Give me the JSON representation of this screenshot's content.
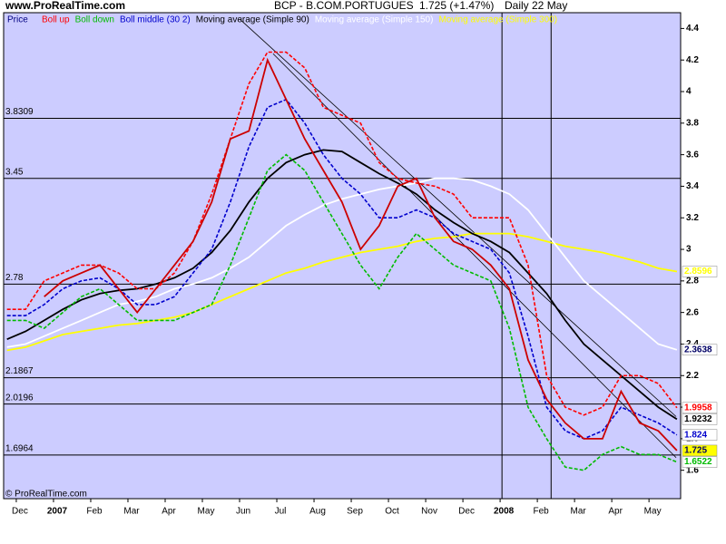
{
  "chart_data": {
    "type": "line",
    "site": "www.ProRealTime.com",
    "title": "BCP - B.COM.PORTUGUES",
    "quote": "1.725 (+1.47%)",
    "period": "Daily  22 May",
    "footer": "© ProRealTime.com",
    "background": "#ccccff",
    "x": [
      -0.25,
      0.25,
      0.75,
      1.25,
      1.75,
      2.25,
      2.75,
      3.25,
      3.75,
      4.25,
      4.75,
      5.25,
      5.75,
      6.25,
      6.75,
      7.25,
      7.75,
      8.25,
      8.75,
      9.25,
      9.75,
      10.25,
      10.75,
      11.25,
      11.75,
      12.25,
      12.75,
      13.25,
      13.75,
      14.25,
      14.75,
      15.25,
      15.75,
      16.25,
      16.75,
      17.25,
      17.75
    ],
    "xlim": [
      -0.34,
      17.85
    ],
    "xticks": [
      {
        "value": 0,
        "label": "Dec"
      },
      {
        "value": 1,
        "label": "2007"
      },
      {
        "value": 2,
        "label": "Feb"
      },
      {
        "value": 3,
        "label": "Mar"
      },
      {
        "value": 4,
        "label": "Apr"
      },
      {
        "value": 5,
        "label": "May"
      },
      {
        "value": 6,
        "label": "Jun"
      },
      {
        "value": 7,
        "label": "Jul"
      },
      {
        "value": 8,
        "label": "Aug"
      },
      {
        "value": 9,
        "label": "Sep"
      },
      {
        "value": 10,
        "label": "Oct"
      },
      {
        "value": 11,
        "label": "Nov"
      },
      {
        "value": 12,
        "label": "Dec"
      },
      {
        "value": 13,
        "label": "2008"
      },
      {
        "value": 14,
        "label": "Feb"
      },
      {
        "value": 15,
        "label": "Mar"
      },
      {
        "value": 16,
        "label": "Apr"
      },
      {
        "value": 17,
        "label": "May"
      }
    ],
    "ylim": [
      1.42,
      4.5
    ],
    "yticks": [
      1.6,
      1.8,
      2,
      2.2,
      2.4,
      2.6,
      2.8,
      3,
      3.2,
      3.4,
      3.6,
      3.8,
      4,
      4.2,
      4.4
    ],
    "hlines": [
      3.8309,
      3.45,
      2.78,
      2.1867,
      2.0196,
      1.6964
    ],
    "vlines": [
      13.05,
      14.37
    ],
    "trendlines": [
      [
        [
          6.0,
          4.46
        ],
        [
          17.73,
          1.94
        ]
      ],
      [
        [
          6.9,
          4.24
        ],
        [
          17.73,
          1.68
        ]
      ]
    ],
    "series": [
      {
        "name": "Price",
        "color": "#cc0000",
        "dash": false,
        "highlight": "#ffff00",
        "values": [
          null,
          null,
          2.7,
          2.8,
          2.85,
          2.9,
          2.75,
          2.6,
          2.75,
          2.9,
          3.05,
          3.3,
          3.7,
          3.75,
          4.2,
          3.95,
          3.7,
          3.5,
          3.3,
          3.0,
          3.15,
          3.4,
          3.45,
          3.2,
          3.05,
          3.0,
          2.9,
          2.75,
          2.3,
          2.05,
          1.9,
          1.8,
          1.8,
          2.1,
          1.9,
          1.85,
          1.725
        ]
      },
      {
        "name": "Boll up",
        "color": "#ff0000",
        "dash": true,
        "values": [
          2.62,
          2.62,
          2.8,
          2.85,
          2.9,
          2.9,
          2.85,
          2.75,
          2.75,
          2.85,
          3.05,
          3.35,
          3.7,
          4.05,
          4.25,
          4.25,
          4.15,
          3.9,
          3.85,
          3.8,
          3.55,
          3.45,
          3.42,
          3.4,
          3.35,
          3.2,
          3.2,
          3.2,
          2.9,
          2.2,
          2.0,
          1.95,
          2.0,
          2.2,
          2.2,
          2.15,
          1.9958
        ]
      },
      {
        "name": "Boll down",
        "color": "#00bb00",
        "dash": true,
        "values": [
          2.55,
          2.55,
          2.5,
          2.6,
          2.7,
          2.75,
          2.65,
          2.55,
          2.55,
          2.55,
          2.6,
          2.65,
          2.9,
          3.2,
          3.5,
          3.6,
          3.5,
          3.3,
          3.1,
          2.9,
          2.75,
          2.95,
          3.1,
          3.0,
          2.9,
          2.85,
          2.8,
          2.5,
          2.0,
          1.8,
          1.62,
          1.6,
          1.7,
          1.75,
          1.7,
          1.7,
          1.6522
        ]
      },
      {
        "name": "Boll middle (30 2)",
        "color": "#0000cc",
        "dash": true,
        "values": [
          2.58,
          2.58,
          2.65,
          2.75,
          2.8,
          2.82,
          2.75,
          2.65,
          2.65,
          2.7,
          2.85,
          3.0,
          3.3,
          3.65,
          3.9,
          3.95,
          3.8,
          3.6,
          3.45,
          3.35,
          3.2,
          3.2,
          3.25,
          3.2,
          3.1,
          3.05,
          3.0,
          2.85,
          2.45,
          2.0,
          1.85,
          1.8,
          1.85,
          2.0,
          1.95,
          1.9,
          1.824
        ]
      },
      {
        "name": "Moving average (Simple 90)",
        "color": "#000000",
        "dash": false,
        "values": [
          2.43,
          2.48,
          2.55,
          2.62,
          2.68,
          2.72,
          2.74,
          2.75,
          2.78,
          2.82,
          2.88,
          2.98,
          3.12,
          3.3,
          3.45,
          3.55,
          3.6,
          3.63,
          3.62,
          3.55,
          3.48,
          3.42,
          3.35,
          3.25,
          3.17,
          3.1,
          3.05,
          2.98,
          2.85,
          2.72,
          2.55,
          2.4,
          2.3,
          2.2,
          2.1,
          2.0,
          1.9232
        ]
      },
      {
        "name": "Moving average (Simple 150)",
        "color": "#ffffff",
        "dash": false,
        "values": [
          2.38,
          2.4,
          2.45,
          2.5,
          2.55,
          2.6,
          2.65,
          2.67,
          2.7,
          2.75,
          2.78,
          2.82,
          2.88,
          2.95,
          3.05,
          3.15,
          3.22,
          3.28,
          3.32,
          3.35,
          3.38,
          3.4,
          3.42,
          3.45,
          3.45,
          3.44,
          3.4,
          3.35,
          3.25,
          3.1,
          2.95,
          2.8,
          2.7,
          2.6,
          2.5,
          2.4,
          2.3638
        ]
      },
      {
        "name": "Moving average (Simple 300)",
        "color": "#ffff00",
        "dash": false,
        "values": [
          2.36,
          2.38,
          2.42,
          2.46,
          2.48,
          2.5,
          2.52,
          2.53,
          2.55,
          2.57,
          2.6,
          2.65,
          2.7,
          2.75,
          2.8,
          2.85,
          2.88,
          2.92,
          2.95,
          2.98,
          3.0,
          3.02,
          3.05,
          3.07,
          3.08,
          3.1,
          3.1,
          3.1,
          3.08,
          3.05,
          3.02,
          3.0,
          2.98,
          2.95,
          2.92,
          2.88,
          2.8596
        ]
      }
    ]
  }
}
